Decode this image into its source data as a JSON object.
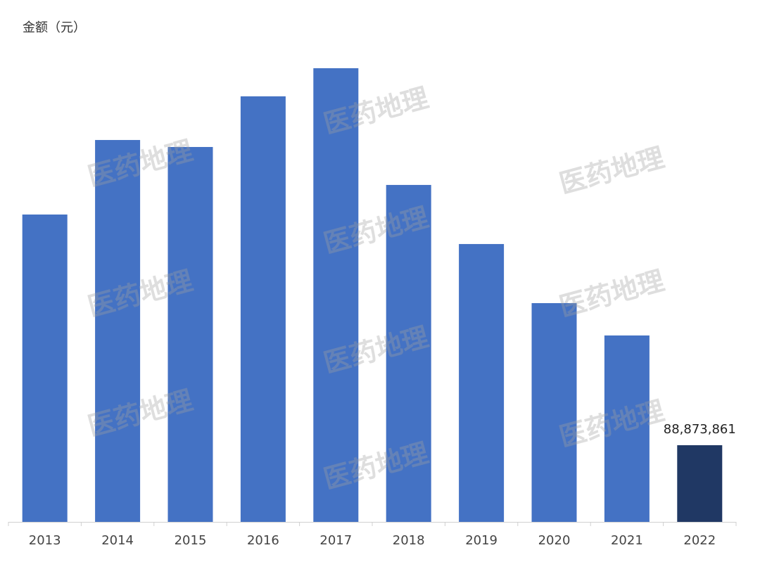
{
  "chart_data": {
    "type": "bar",
    "y_label": "金额（元）",
    "categories": [
      "2013",
      "2014",
      "2015",
      "2016",
      "2017",
      "2018",
      "2019",
      "2020",
      "2021",
      "2022"
    ],
    "values": [
      356300000,
      442700000,
      434600000,
      493300000,
      525900000,
      390600000,
      322100000,
      253600000,
      216100000,
      88873861
    ],
    "value_labels": [
      null,
      null,
      null,
      null,
      null,
      null,
      null,
      null,
      null,
      "88,873,861"
    ],
    "colors": [
      "#4472c4",
      "#4472c4",
      "#4472c4",
      "#4472c4",
      "#4472c4",
      "#4472c4",
      "#4472c4",
      "#4472c4",
      "#4472c4",
      "#203864"
    ],
    "watermark": "医药地理"
  }
}
